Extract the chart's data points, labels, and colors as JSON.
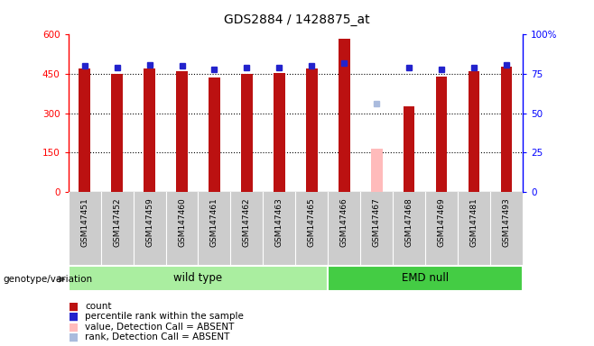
{
  "title": "GDS2884 / 1428875_at",
  "samples": [
    "GSM147451",
    "GSM147452",
    "GSM147459",
    "GSM147460",
    "GSM147461",
    "GSM147462",
    "GSM147463",
    "GSM147465",
    "GSM147466",
    "GSM147467",
    "GSM147468",
    "GSM147469",
    "GSM147481",
    "GSM147493"
  ],
  "counts": [
    470,
    450,
    472,
    462,
    437,
    449,
    453,
    472,
    585,
    165,
    325,
    440,
    462,
    478
  ],
  "percentile_ranks": [
    80,
    79,
    81,
    80,
    78,
    79,
    79,
    80,
    82,
    56,
    79,
    78,
    79,
    81
  ],
  "absent_flags": [
    false,
    false,
    false,
    false,
    false,
    false,
    false,
    false,
    false,
    true,
    false,
    false,
    false,
    false
  ],
  "groups": [
    {
      "label": "wild type",
      "start": 0,
      "end": 8,
      "color": "#aaeea0"
    },
    {
      "label": "EMD null",
      "start": 8,
      "end": 14,
      "color": "#44cc44"
    }
  ],
  "ylim_left": [
    0,
    600
  ],
  "ylim_right": [
    0,
    100
  ],
  "yticks_left": [
    0,
    150,
    300,
    450,
    600
  ],
  "yticks_right": [
    0,
    25,
    50,
    75,
    100
  ],
  "ytick_labels_right": [
    "0",
    "25",
    "50",
    "75",
    "100%"
  ],
  "bar_color": "#bb1111",
  "absent_bar_color": "#ffbbbb",
  "dot_color": "#2222cc",
  "absent_dot_color": "#aabbdd",
  "bar_width": 0.35,
  "bg_color": "#ffffff",
  "plot_bg_color": "#ffffff",
  "legend_items": [
    {
      "color": "#bb1111",
      "label": "count"
    },
    {
      "color": "#2222cc",
      "label": "percentile rank within the sample"
    },
    {
      "color": "#ffbbbb",
      "label": "value, Detection Call = ABSENT"
    },
    {
      "color": "#aabbdd",
      "label": "rank, Detection Call = ABSENT"
    }
  ],
  "xlabel_area_color": "#cccccc",
  "genotype_label": "genotype/variation",
  "grid_lines": [
    150,
    300,
    450
  ]
}
